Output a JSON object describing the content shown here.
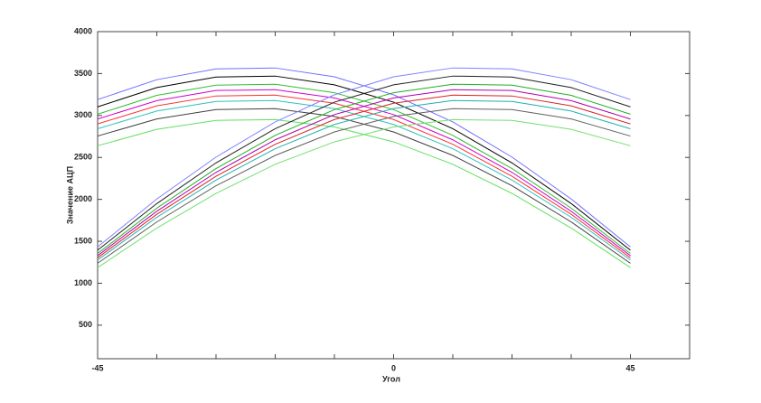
{
  "chart_data": {
    "type": "line",
    "xlabel": "Угол",
    "ylabel": "Значение АЦП",
    "x": [
      0,
      1,
      2,
      3,
      4,
      5,
      6,
      7,
      8,
      9
    ],
    "xlim": [
      0,
      10
    ],
    "xticks": [
      {
        "value": 0,
        "label": "-45"
      },
      {
        "value": 5,
        "label": "0"
      },
      {
        "value": 9,
        "label": "45"
      }
    ],
    "xminor_ticks": [
      1,
      2,
      3,
      4,
      6,
      7,
      8,
      10
    ],
    "ylim": [
      100,
      4000
    ],
    "yticks": [
      500,
      1000,
      1500,
      2000,
      2500,
      3000,
      3500,
      4000
    ],
    "grid": false,
    "series": [
      {
        "color": "#7070ff",
        "values": [
          3190,
          3427,
          3556,
          3567,
          3461,
          3247,
          2923,
          2504,
          2004,
          1433
        ]
      },
      {
        "color": "#000000",
        "values": [
          3103,
          3333,
          3459,
          3470,
          3366,
          3159,
          2843,
          2435,
          1950,
          1394
        ]
      },
      {
        "color": "#30c030",
        "values": [
          3016,
          3240,
          3362,
          3373,
          3272,
          3070,
          2763,
          2367,
          1895,
          1355
        ]
      },
      {
        "color": "#d000d0",
        "values": [
          2958,
          3177,
          3298,
          3308,
          3209,
          3011,
          2710,
          2322,
          1858,
          1329
        ]
      },
      {
        "color": "#ff3030",
        "values": [
          2900,
          3115,
          3233,
          3243,
          3146,
          2952,
          2657,
          2276,
          1822,
          1303
        ]
      },
      {
        "color": "#30c0c0",
        "values": [
          2842,
          3053,
          3168,
          3178,
          3083,
          2893,
          2604,
          2230,
          1786,
          1277
        ]
      },
      {
        "color": "#404040",
        "values": [
          2755,
          2959,
          3071,
          3081,
          2989,
          2804,
          2524,
          2162,
          1731,
          1238
        ]
      },
      {
        "color": "#60e060",
        "values": [
          2639,
          2835,
          2942,
          2951,
          2863,
          2686,
          2418,
          2071,
          1658,
          1186
        ]
      },
      {
        "color": "#8080ff",
        "values": [
          1433,
          2004,
          2504,
          2923,
          3247,
          3461,
          3567,
          3556,
          3427,
          3190
        ]
      },
      {
        "color": "#202020",
        "values": [
          1394,
          1950,
          2435,
          2843,
          3159,
          3366,
          3470,
          3459,
          3333,
          3103
        ]
      },
      {
        "color": "#20b020",
        "values": [
          1355,
          1895,
          2367,
          2763,
          3070,
          3272,
          3373,
          3362,
          3240,
          3016
        ]
      },
      {
        "color": "#b000b0",
        "values": [
          1329,
          1858,
          2322,
          2710,
          3011,
          3209,
          3308,
          3298,
          3177,
          2958
        ]
      },
      {
        "color": "#e02020",
        "values": [
          1303,
          1822,
          2276,
          2657,
          2952,
          3146,
          3243,
          3233,
          3115,
          2900
        ]
      },
      {
        "color": "#20b0b0",
        "values": [
          1277,
          1786,
          2230,
          2604,
          2893,
          3083,
          3178,
          3168,
          3053,
          2842
        ]
      },
      {
        "color": "#606060",
        "values": [
          1238,
          1731,
          2162,
          2524,
          2804,
          2989,
          3081,
          3071,
          2959,
          2755
        ]
      },
      {
        "color": "#70e070",
        "values": [
          1186,
          1658,
          2071,
          2418,
          2686,
          2863,
          2951,
          2942,
          2835,
          2639
        ]
      }
    ]
  }
}
